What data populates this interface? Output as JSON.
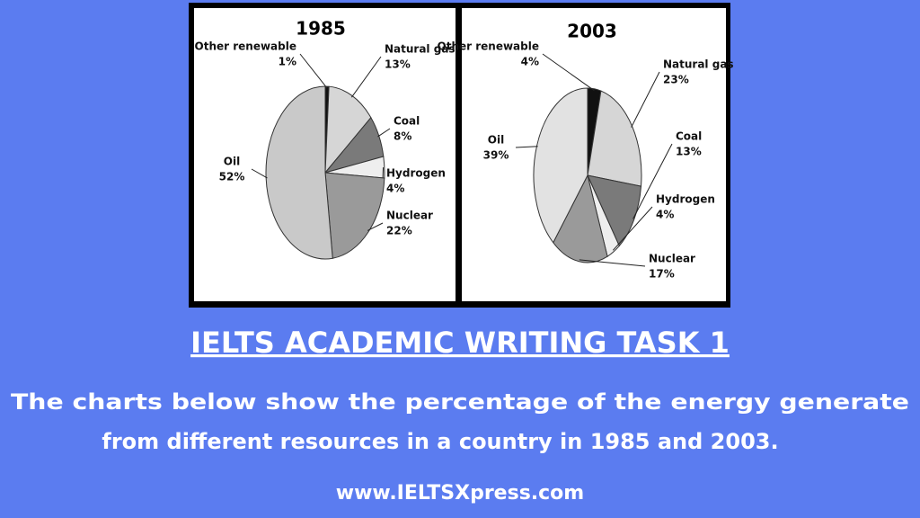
{
  "chart_data": [
    {
      "type": "pie",
      "title": "1985",
      "categories": [
        "Other renewable",
        "Natural gas",
        "Coal",
        "Hydrogen",
        "Nuclear",
        "Oil"
      ],
      "values": [
        1,
        13,
        8,
        4,
        22,
        52
      ],
      "value_labels": [
        "1%",
        "13%",
        "8%",
        "4%",
        "22%",
        "52%"
      ],
      "colors": [
        "#111111",
        "#d6d6d6",
        "#7a7a7a",
        "#eeeeee",
        "#9a9a9a",
        "#c9c9c9"
      ]
    },
    {
      "type": "pie",
      "title": "2003",
      "categories": [
        "Other renewable",
        "Natural gas",
        "Coal",
        "Hydrogen",
        "Nuclear",
        "Oil"
      ],
      "values": [
        4,
        23,
        13,
        4,
        17,
        39
      ],
      "value_labels": [
        "4%",
        "23%",
        "13%",
        "4%",
        "17%",
        "39%"
      ],
      "colors": [
        "#111111",
        "#d6d6d6",
        "#7a7a7a",
        "#eeeeee",
        "#9a9a9a",
        "#e2e2e2"
      ]
    }
  ],
  "heading": "IELTS ACADEMIC WRITING TASK 1",
  "description": [
    "The charts below show the percentage of the energy generate",
    "from different resources in a country in 1985 and 2003."
  ],
  "website": "www.IELTSXpress.com"
}
